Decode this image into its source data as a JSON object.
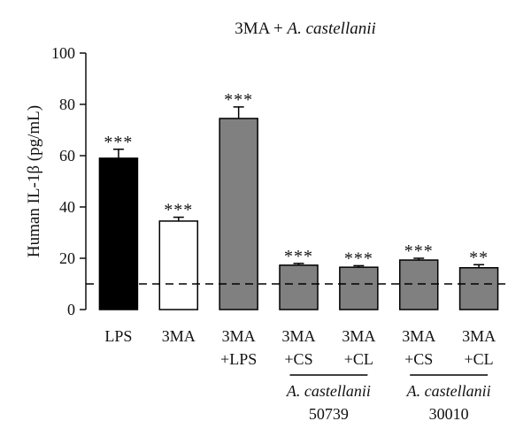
{
  "chart_data": {
    "type": "bar",
    "title_prefix": "3MA + ",
    "title_italic": "A. castellanii",
    "ylabel": "Human IL-1β (pg/mL)",
    "ylim": [
      0,
      100
    ],
    "yticks": [
      0,
      20,
      40,
      60,
      80,
      100
    ],
    "grid": false,
    "baseline": {
      "value": 10,
      "style": "dashed"
    },
    "categories": [
      {
        "line1": "LPS",
        "line2": ""
      },
      {
        "line1": "3MA",
        "line2": ""
      },
      {
        "line1": "3MA",
        "line2": "+LPS"
      },
      {
        "line1": "3MA",
        "line2": "+CS"
      },
      {
        "line1": "3MA",
        "line2": "+CL"
      },
      {
        "line1": "3MA",
        "line2": "+CS"
      },
      {
        "line1": "3MA",
        "line2": "+CL"
      }
    ],
    "values": [
      59,
      34.5,
      74.5,
      17.3,
      16.5,
      19.3,
      16.3
    ],
    "errors": [
      3.5,
      1.5,
      4.5,
      0.7,
      0.6,
      0.7,
      1.2
    ],
    "significance": [
      "***",
      "***",
      "***",
      "***",
      "***",
      "***",
      "**"
    ],
    "bar_colors": [
      "#000000",
      "#ffffff",
      "#808080",
      "#808080",
      "#808080",
      "#808080",
      "#808080"
    ],
    "groups": [
      {
        "name": "A. castellanii",
        "strain": "50739",
        "bars": [
          3,
          4
        ]
      },
      {
        "name": "A. castellanii",
        "strain": "30010",
        "bars": [
          5,
          6
        ]
      }
    ]
  }
}
